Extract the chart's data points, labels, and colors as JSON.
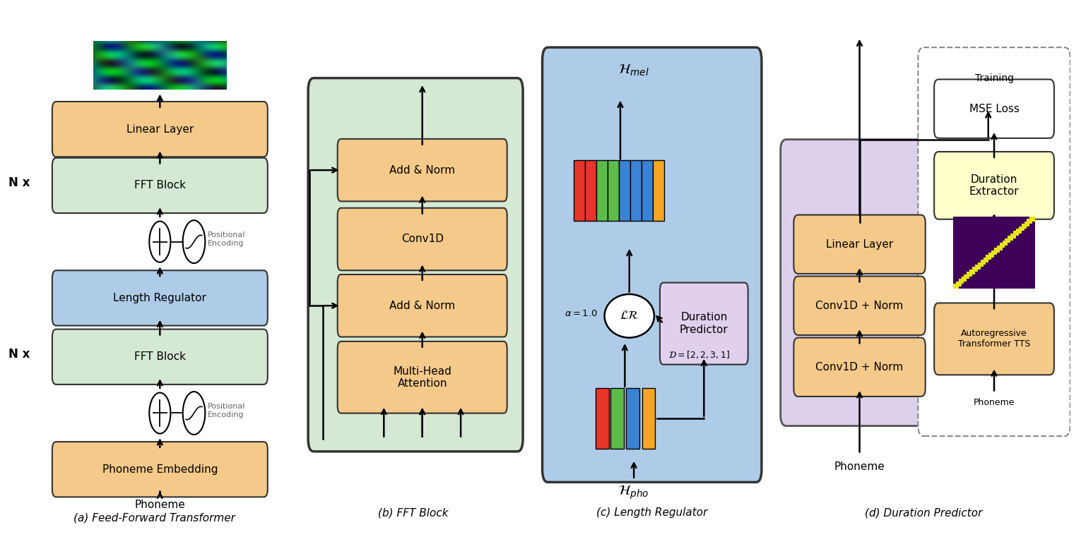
{
  "bg_color": "#ffffff",
  "orange_box": "#F5C98A",
  "green_box": "#D5E8D4",
  "blue_box": "#AECCE8",
  "purple_box": "#DDD0EA",
  "yellow_box": "#FFFFCC",
  "white_box": "#FFFFFF",
  "label_fontsize": 11,
  "small_fontsize": 9,
  "captions": [
    "(a) Feed-Forward Transformer",
    "(b) FFT Block",
    "(c) Length Regulator",
    "(d) Duration Predictor"
  ],
  "bar_colors_pho": [
    "#E8352A",
    "#5DBB4A",
    "#3B82D4",
    "#F5A623"
  ],
  "bar_colors_mel": [
    "#E8352A",
    "#E8352A",
    "#5DBB4A",
    "#5DBB4A",
    "#3B82D4",
    "#3B82D4",
    "#3B82D4",
    "#F5A623"
  ]
}
